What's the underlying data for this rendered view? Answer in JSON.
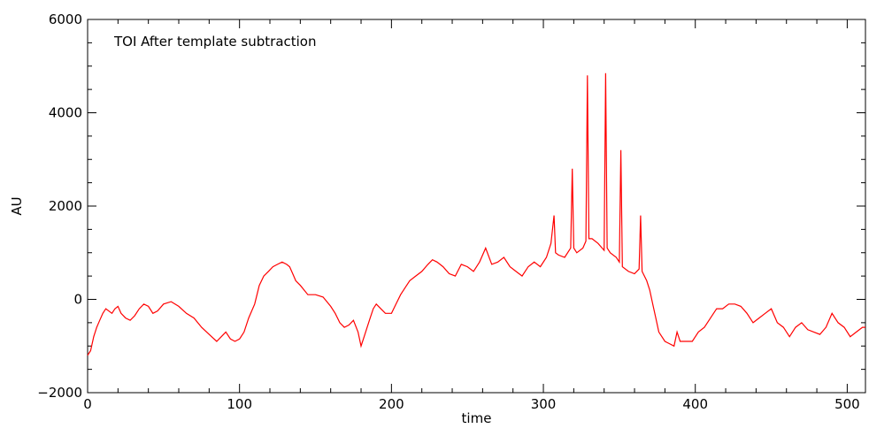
{
  "chart_data": {
    "type": "line",
    "title": "TOI After template subtraction",
    "xlabel": "time",
    "ylabel": "AU",
    "xlim": [
      0,
      512
    ],
    "ylim": [
      -2000,
      6000
    ],
    "x_ticks": [
      0,
      100,
      200,
      300,
      400,
      500
    ],
    "y_ticks": [
      -2000,
      0,
      2000,
      4000,
      6000
    ],
    "x_minor_step": 20,
    "y_minor_step": 500,
    "grid": false,
    "line_color": "#ff0000",
    "series": [
      {
        "x": [
          0,
          2,
          4,
          6,
          8,
          10,
          12,
          14,
          16,
          18,
          20,
          22,
          25,
          28,
          31,
          34,
          37,
          40,
          43,
          46,
          50,
          55,
          60,
          65,
          70,
          75,
          80,
          85,
          88,
          91,
          94,
          97,
          100,
          103,
          106,
          110,
          113,
          116,
          119,
          122,
          125,
          128,
          131,
          133,
          135,
          137,
          140,
          145,
          150,
          155,
          160,
          163,
          166,
          169,
          172,
          175,
          178,
          180,
          182,
          184,
          186,
          188,
          190,
          193,
          196,
          200,
          203,
          206,
          209,
          212,
          216,
          220,
          224,
          227,
          230,
          234,
          238,
          242,
          246,
          250,
          254,
          258,
          262,
          266,
          270,
          274,
          278,
          282,
          286,
          290,
          294,
          298,
          302,
          305,
          307,
          308,
          310,
          314,
          318,
          319,
          320,
          322,
          326,
          328,
          329,
          330,
          332,
          336,
          340,
          341,
          342,
          344,
          348,
          350,
          351,
          352,
          356,
          360,
          363,
          364,
          365,
          368,
          370,
          372,
          374,
          376,
          380,
          383,
          386,
          388,
          390,
          394,
          398,
          402,
          406,
          410,
          414,
          418,
          422,
          426,
          430,
          434,
          438,
          442,
          446,
          450,
          454,
          458,
          462,
          466,
          470,
          474,
          478,
          482,
          486,
          490,
          494,
          498,
          502,
          506,
          510,
          512
        ],
        "y": [
          -1200,
          -1100,
          -800,
          -600,
          -450,
          -300,
          -200,
          -250,
          -300,
          -200,
          -150,
          -300,
          -400,
          -450,
          -350,
          -200,
          -100,
          -150,
          -300,
          -250,
          -100,
          -50,
          -150,
          -300,
          -400,
          -600,
          -750,
          -900,
          -800,
          -700,
          -850,
          -900,
          -850,
          -700,
          -400,
          -100,
          300,
          500,
          600,
          700,
          750,
          800,
          750,
          700,
          550,
          400,
          300,
          100,
          100,
          50,
          -150,
          -300,
          -500,
          -600,
          -550,
          -450,
          -700,
          -1000,
          -800,
          -600,
          -400,
          -200,
          -100,
          -200,
          -300,
          -300,
          -100,
          100,
          250,
          400,
          500,
          600,
          750,
          850,
          800,
          700,
          550,
          500,
          750,
          700,
          600,
          800,
          1100,
          750,
          800,
          900,
          700,
          600,
          500,
          700,
          800,
          700,
          900,
          1200,
          1800,
          1000,
          950,
          900,
          1100,
          2800,
          1100,
          1000,
          1100,
          1250,
          4800,
          1300,
          1300,
          1200,
          1050,
          4850,
          1100,
          1000,
          900,
          800,
          3200,
          700,
          600,
          550,
          650,
          1800,
          600,
          400,
          200,
          -100,
          -400,
          -700,
          -900,
          -950,
          -1000,
          -700,
          -900,
          -900,
          -900,
          -700,
          -600,
          -400,
          -200,
          -200,
          -100,
          -100,
          -150,
          -300,
          -500,
          -400,
          -300,
          -200,
          -500,
          -600,
          -800,
          -600,
          -500,
          -650,
          -700,
          -750,
          -600,
          -300,
          -500,
          -600,
          -800,
          -700,
          -600,
          -600
        ]
      }
    ]
  }
}
